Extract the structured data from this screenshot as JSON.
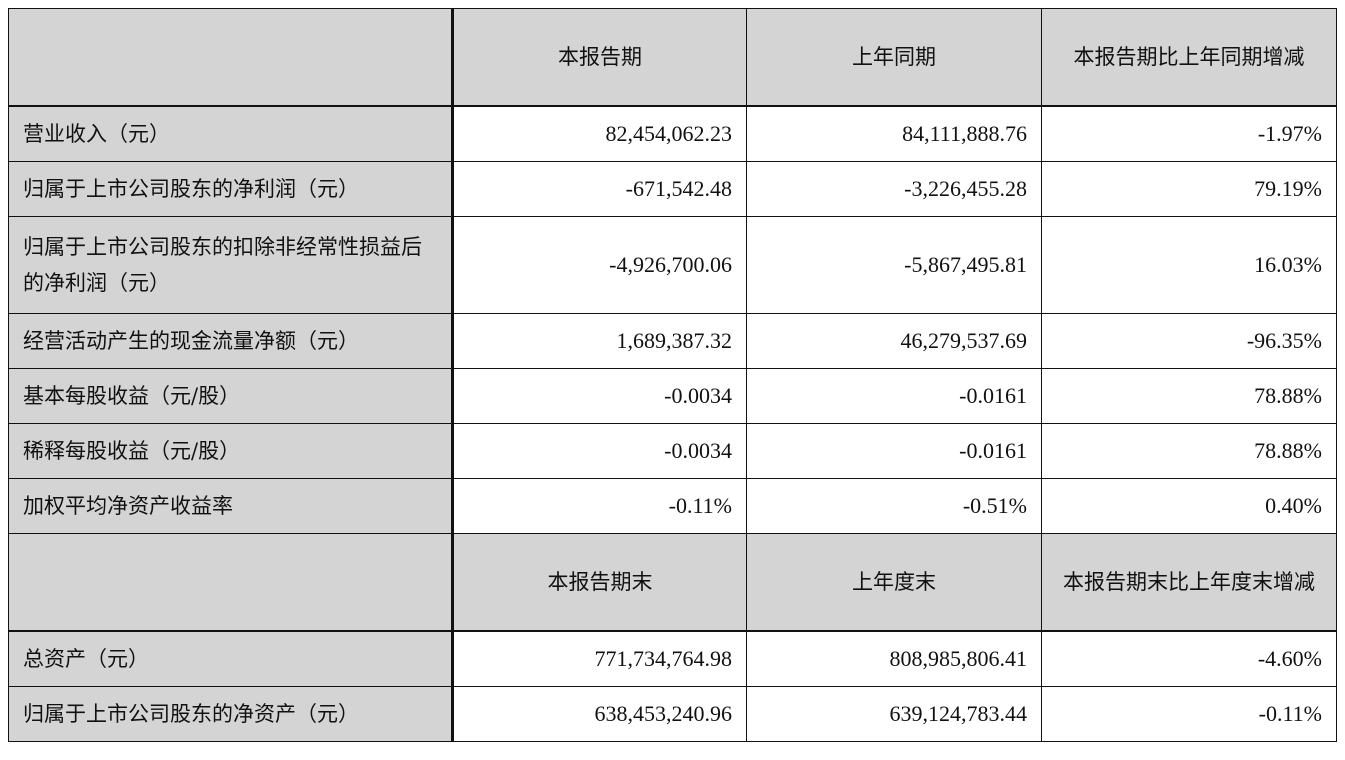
{
  "colors": {
    "header_bg": "#d4d4d4",
    "border": "#111111"
  },
  "header1": [
    "",
    "本报告期",
    "上年同期",
    "本报告期比上年同期增减"
  ],
  "rows1": [
    {
      "label": "营业收入（元）",
      "values": [
        "82,454,062.23",
        "84,111,888.76",
        "-1.97%"
      ]
    },
    {
      "label": "归属于上市公司股东的净利润（元）",
      "values": [
        "-671,542.48",
        "-3,226,455.28",
        "79.19%"
      ]
    },
    {
      "label": "归属于上市公司股东的扣除非经常性损益后的净利润（元）",
      "values": [
        "-4,926,700.06",
        "-5,867,495.81",
        "16.03%"
      ]
    },
    {
      "label": "经营活动产生的现金流量净额（元）",
      "values": [
        "1,689,387.32",
        "46,279,537.69",
        "-96.35%"
      ]
    },
    {
      "label": "基本每股收益（元/股）",
      "values": [
        "-0.0034",
        "-0.0161",
        "78.88%"
      ]
    },
    {
      "label": "稀释每股收益（元/股）",
      "values": [
        "-0.0034",
        "-0.0161",
        "78.88%"
      ]
    },
    {
      "label": "加权平均净资产收益率",
      "values": [
        "-0.11%",
        "-0.51%",
        "0.40%"
      ]
    }
  ],
  "header2": [
    "",
    "本报告期末",
    "上年度末",
    "本报告期末比上年度末增减"
  ],
  "rows2": [
    {
      "label": "总资产（元）",
      "values": [
        "771,734,764.98",
        "808,985,806.41",
        "-4.60%"
      ]
    },
    {
      "label": "归属于上市公司股东的净资产（元）",
      "values": [
        "638,453,240.96",
        "639,124,783.44",
        "-0.11%"
      ]
    }
  ]
}
